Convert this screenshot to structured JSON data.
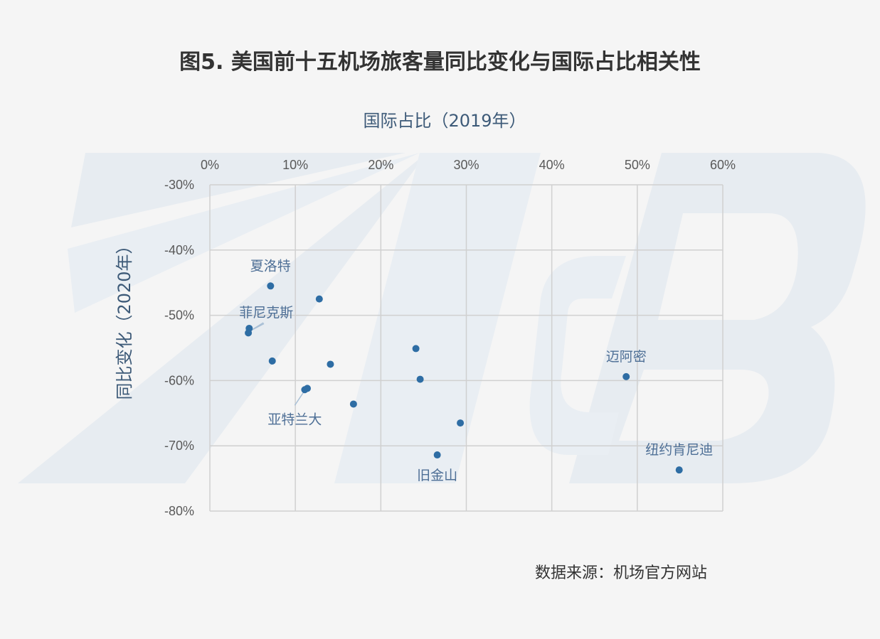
{
  "title": "图5. 美国前十五机场旅客量同比变化与国际占比相关性",
  "source": "数据来源：机场官方网站",
  "colors": {
    "point": "#2e6da4",
    "label": "#4e6f96",
    "axis_title": "#3d5a78",
    "grid": "#d0d0d0",
    "watermark": "#e6ebf0"
  },
  "chart_data": {
    "type": "scatter",
    "xlabel": "国际占比（2019年）",
    "ylabel": "同比变化（2020年）",
    "xlim": [
      0,
      0.6
    ],
    "ylim": [
      -0.8,
      -0.3
    ],
    "x_ticks": [
      0,
      0.1,
      0.2,
      0.3,
      0.4,
      0.5,
      0.6
    ],
    "x_tick_labels": [
      "0%",
      "10%",
      "20%",
      "30%",
      "40%",
      "50%",
      "60%"
    ],
    "y_ticks": [
      -0.3,
      -0.4,
      -0.5,
      -0.6,
      -0.7,
      -0.8
    ],
    "y_tick_labels": [
      "-30%",
      "-40%",
      "-50%",
      "-60%",
      "-70%",
      "-80%"
    ],
    "x_axis_position": "top",
    "grid": true,
    "points": [
      {
        "x": 0.071,
        "y": -0.455,
        "label": "夏洛特"
      },
      {
        "x": 0.128,
        "y": -0.475,
        "label": ""
      },
      {
        "x": 0.046,
        "y": -0.52,
        "label": "菲尼克斯"
      },
      {
        "x": 0.045,
        "y": -0.527,
        "label": ""
      },
      {
        "x": 0.073,
        "y": -0.57,
        "label": ""
      },
      {
        "x": 0.141,
        "y": -0.575,
        "label": ""
      },
      {
        "x": 0.241,
        "y": -0.551,
        "label": ""
      },
      {
        "x": 0.246,
        "y": -0.598,
        "label": ""
      },
      {
        "x": 0.111,
        "y": -0.614,
        "label": "亚特兰大"
      },
      {
        "x": 0.114,
        "y": -0.612,
        "label": ""
      },
      {
        "x": 0.168,
        "y": -0.636,
        "label": ""
      },
      {
        "x": 0.293,
        "y": -0.665,
        "label": ""
      },
      {
        "x": 0.266,
        "y": -0.714,
        "label": "旧金山"
      },
      {
        "x": 0.487,
        "y": -0.594,
        "label": "迈阿密"
      },
      {
        "x": 0.549,
        "y": -0.737,
        "label": "纽约肯尼迪"
      }
    ]
  }
}
